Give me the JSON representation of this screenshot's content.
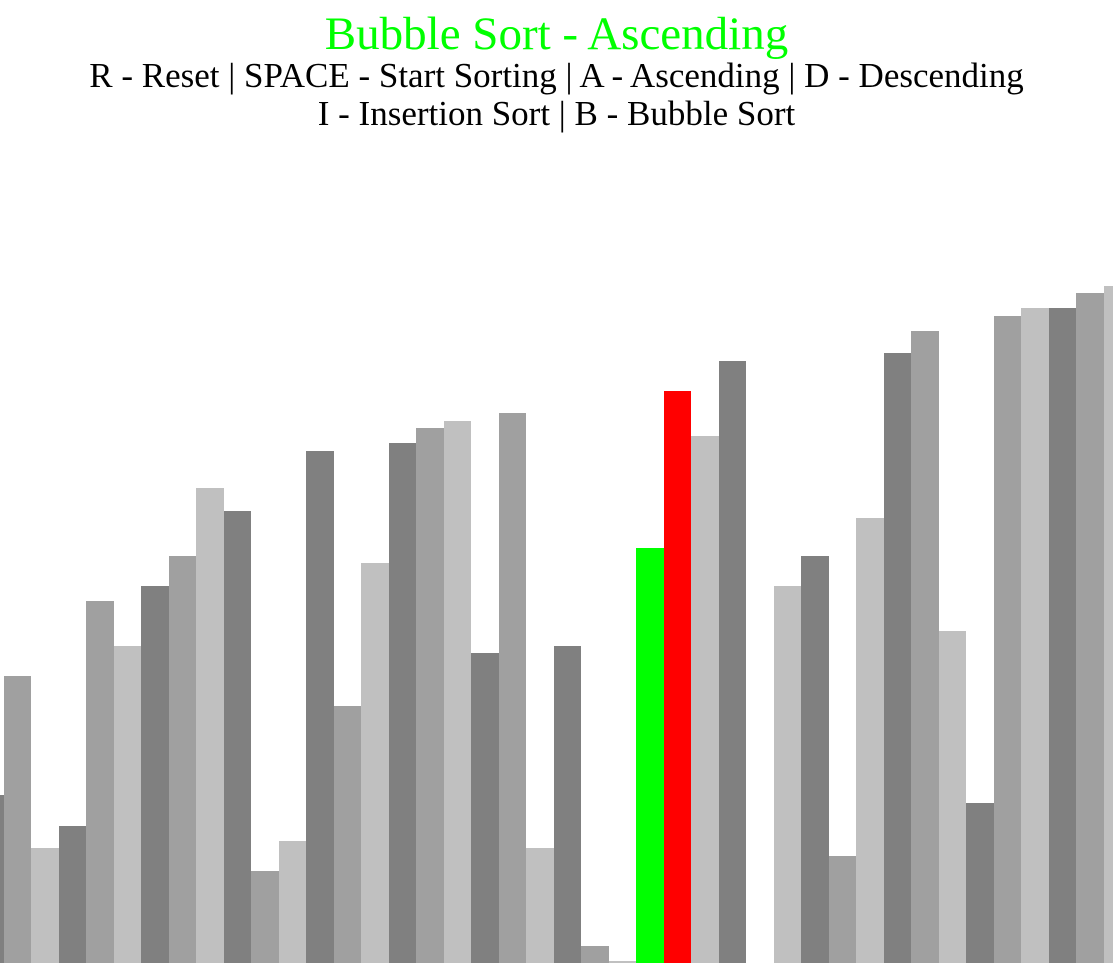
{
  "header": {
    "title": "Bubble Sort - Ascending",
    "instructions_line1": "R - Reset | SPACE - Start Sorting | A - Ascending | D - Descending",
    "instructions_line2": "I - Insertion Sort | B - Bubble Sort"
  },
  "colors": {
    "title": "#00ff00",
    "compare_a": "#00ff00",
    "compare_b": "#ff0000",
    "shades": [
      "#808080",
      "#a0a0a0",
      "#c0c0c0"
    ]
  },
  "chart_data": {
    "type": "bar",
    "max_value": 963,
    "bars": [
      {
        "value": 168,
        "state": "normal"
      },
      {
        "value": 287,
        "state": "normal"
      },
      {
        "value": 115,
        "state": "normal"
      },
      {
        "value": 137,
        "state": "normal"
      },
      {
        "value": 362,
        "state": "normal"
      },
      {
        "value": 317,
        "state": "normal"
      },
      {
        "value": 377,
        "state": "normal"
      },
      {
        "value": 407,
        "state": "normal"
      },
      {
        "value": 475,
        "state": "normal"
      },
      {
        "value": 452,
        "state": "normal"
      },
      {
        "value": 92,
        "state": "normal"
      },
      {
        "value": 122,
        "state": "normal"
      },
      {
        "value": 512,
        "state": "normal"
      },
      {
        "value": 257,
        "state": "normal"
      },
      {
        "value": 400,
        "state": "normal"
      },
      {
        "value": 520,
        "state": "normal"
      },
      {
        "value": 535,
        "state": "normal"
      },
      {
        "value": 542,
        "state": "normal"
      },
      {
        "value": 310,
        "state": "normal"
      },
      {
        "value": 550,
        "state": "normal"
      },
      {
        "value": 115,
        "state": "normal"
      },
      {
        "value": 317,
        "state": "normal"
      },
      {
        "value": 17,
        "state": "normal"
      },
      {
        "value": 2,
        "state": "normal"
      },
      {
        "value": 415,
        "state": "compare_a"
      },
      {
        "value": 572,
        "state": "compare_b"
      },
      {
        "value": 527,
        "state": "normal"
      },
      {
        "value": 602,
        "state": "normal"
      },
      {
        "value": 0,
        "state": "normal"
      },
      {
        "value": 377,
        "state": "normal"
      },
      {
        "value": 407,
        "state": "normal"
      },
      {
        "value": 107,
        "state": "normal"
      },
      {
        "value": 445,
        "state": "normal"
      },
      {
        "value": 610,
        "state": "normal"
      },
      {
        "value": 632,
        "state": "normal"
      },
      {
        "value": 332,
        "state": "normal"
      },
      {
        "value": 160,
        "state": "normal"
      },
      {
        "value": 647,
        "state": "normal"
      },
      {
        "value": 655,
        "state": "normal"
      },
      {
        "value": 655,
        "state": "normal"
      },
      {
        "value": 670,
        "state": "normal"
      },
      {
        "value": 677,
        "state": "normal"
      }
    ]
  }
}
